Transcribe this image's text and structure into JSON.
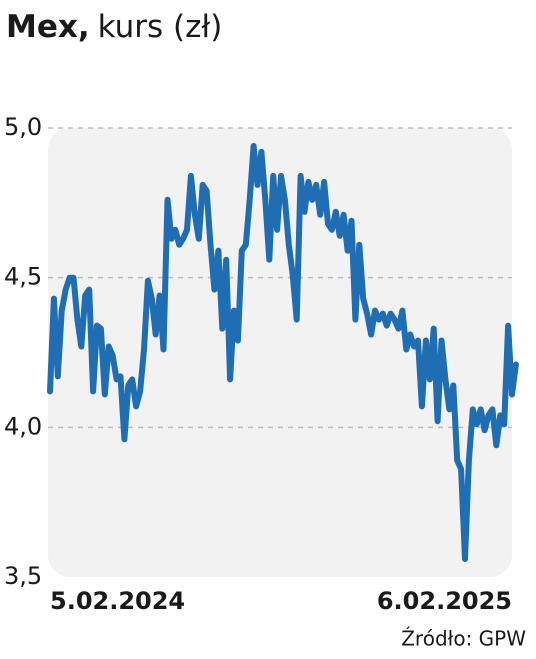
{
  "chart_data": {
    "type": "line",
    "title": "Mex,",
    "subtitle": "kurs (zł)",
    "source": "Źródło: GPW",
    "xlim": [
      0,
      118
    ],
    "xticks": [
      {
        "value": 0,
        "label": "5.02.2024"
      },
      {
        "value": 118,
        "label": "6.02.2025"
      }
    ],
    "ylim": [
      3.5,
      5.0
    ],
    "yticks": [
      {
        "value": 3.5,
        "label": "3,5"
      },
      {
        "value": 4.0,
        "label": "4,0"
      },
      {
        "value": 4.5,
        "label": "4,5"
      },
      {
        "value": 5.0,
        "label": "5,0"
      }
    ],
    "grid": true,
    "color": "#1f6db3",
    "values": [
      4.12,
      4.43,
      4.17,
      4.39,
      4.46,
      4.5,
      4.5,
      4.36,
      4.27,
      4.44,
      4.46,
      4.12,
      4.34,
      4.33,
      4.11,
      4.27,
      4.24,
      4.16,
      4.17,
      3.96,
      4.14,
      4.16,
      4.07,
      4.12,
      4.26,
      4.49,
      4.43,
      4.31,
      4.44,
      4.26,
      4.76,
      4.63,
      4.66,
      4.61,
      4.63,
      4.66,
      4.84,
      4.71,
      4.63,
      4.81,
      4.79,
      4.61,
      4.46,
      4.59,
      4.33,
      4.56,
      4.16,
      4.39,
      4.29,
      4.59,
      4.61,
      4.76,
      4.94,
      4.81,
      4.92,
      4.76,
      4.56,
      4.84,
      4.66,
      4.84,
      4.76,
      4.61,
      4.51,
      4.36,
      4.84,
      4.72,
      4.82,
      4.76,
      4.81,
      4.71,
      4.82,
      4.68,
      4.66,
      4.72,
      4.64,
      4.71,
      4.59,
      4.69,
      4.36,
      4.61,
      4.43,
      4.38,
      4.31,
      4.39,
      4.36,
      4.38,
      4.34,
      4.38,
      4.36,
      4.33,
      4.39,
      4.26,
      4.31,
      4.27,
      4.29,
      4.07,
      4.29,
      4.16,
      4.33,
      4.02,
      4.29,
      4.16,
      4.06,
      4.14,
      3.89,
      3.86,
      3.56,
      3.89,
      4.06,
      4.01,
      4.06,
      3.99,
      4.04,
      4.06,
      3.94,
      4.04,
      4.01,
      4.34,
      4.11,
      4.21
    ]
  }
}
